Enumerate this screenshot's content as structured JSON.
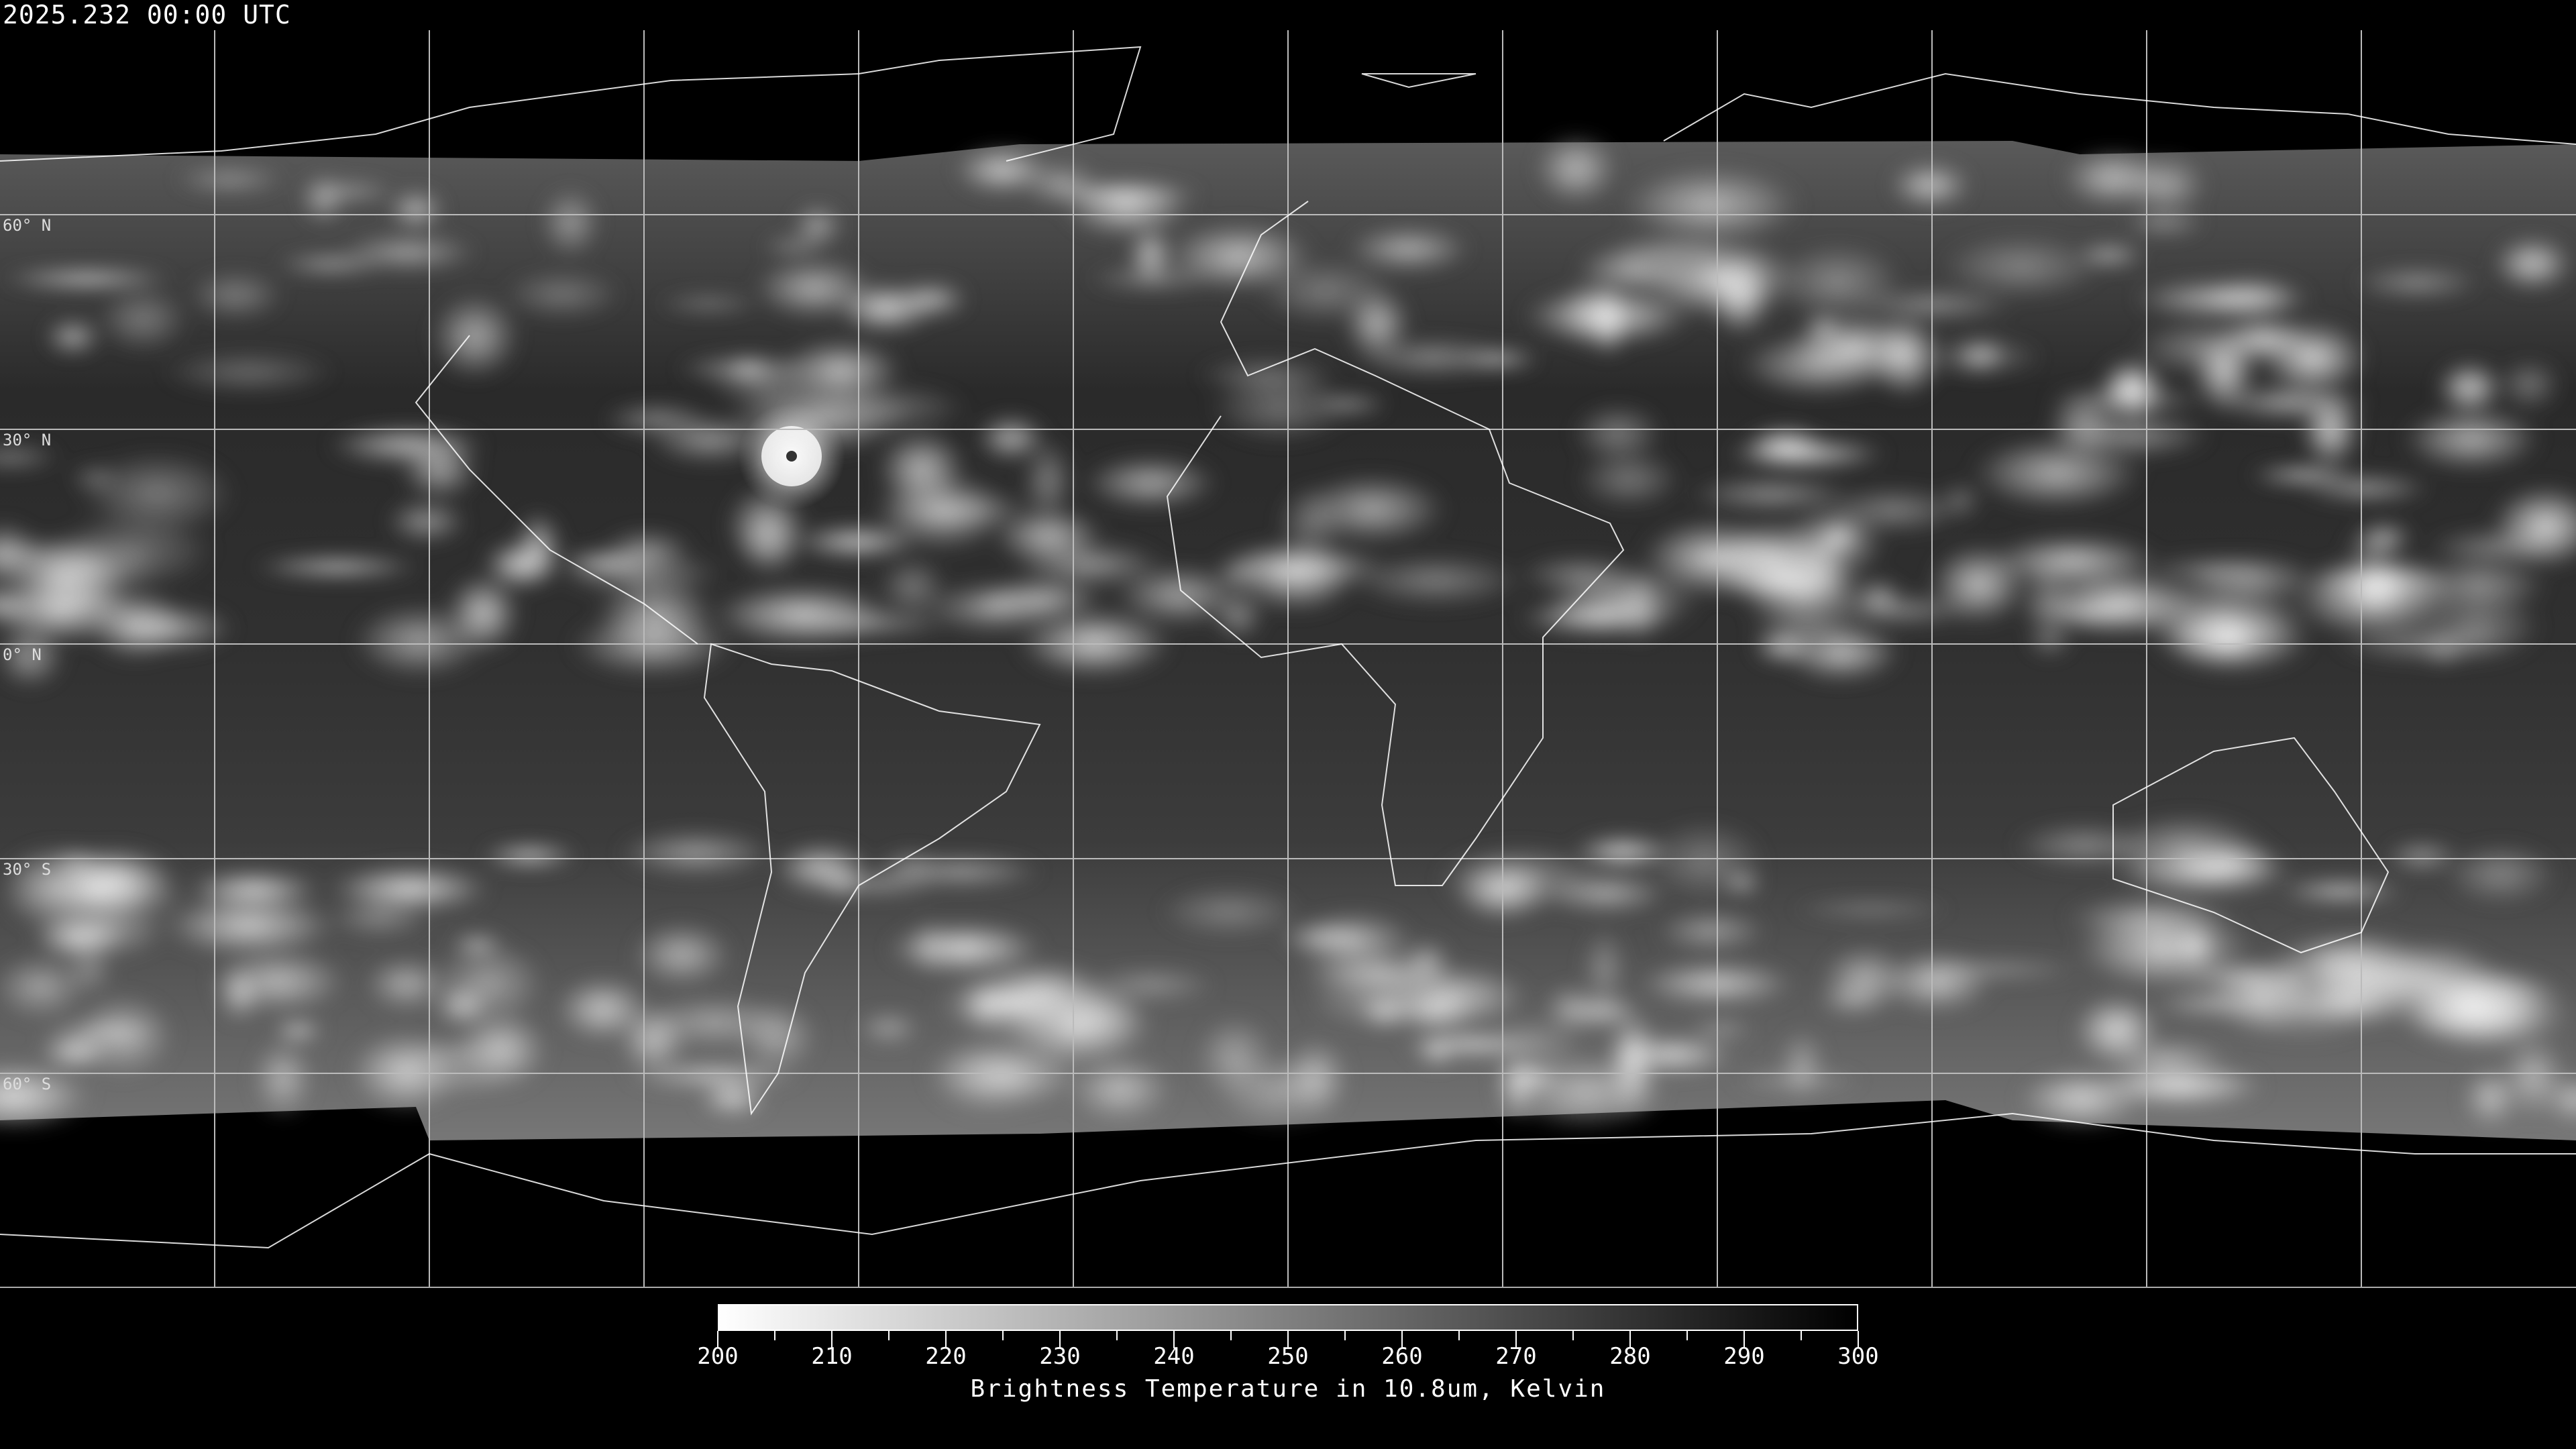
{
  "title": "2025.232 00:00 UTC",
  "latitude_labels": [
    "60° N",
    "30° N",
    "0° N",
    "30° S",
    "60° S"
  ],
  "colorbar": {
    "min": 200,
    "max": 300,
    "tick_labels": [
      "200",
      "210",
      "220",
      "230",
      "240",
      "250",
      "260",
      "270",
      "280",
      "290",
      "300"
    ],
    "label": "Brightness Temperature in 10.8um, Kelvin",
    "colormap": "grayscale inverted (cold = white, warm = black)",
    "color_cold": "#ffffff",
    "color_warm": "#000000"
  },
  "map": {
    "projection": "equirectangular global",
    "graticule_spacing_degrees": 30,
    "coastline_color": "#ffffff",
    "background": "#000000"
  }
}
